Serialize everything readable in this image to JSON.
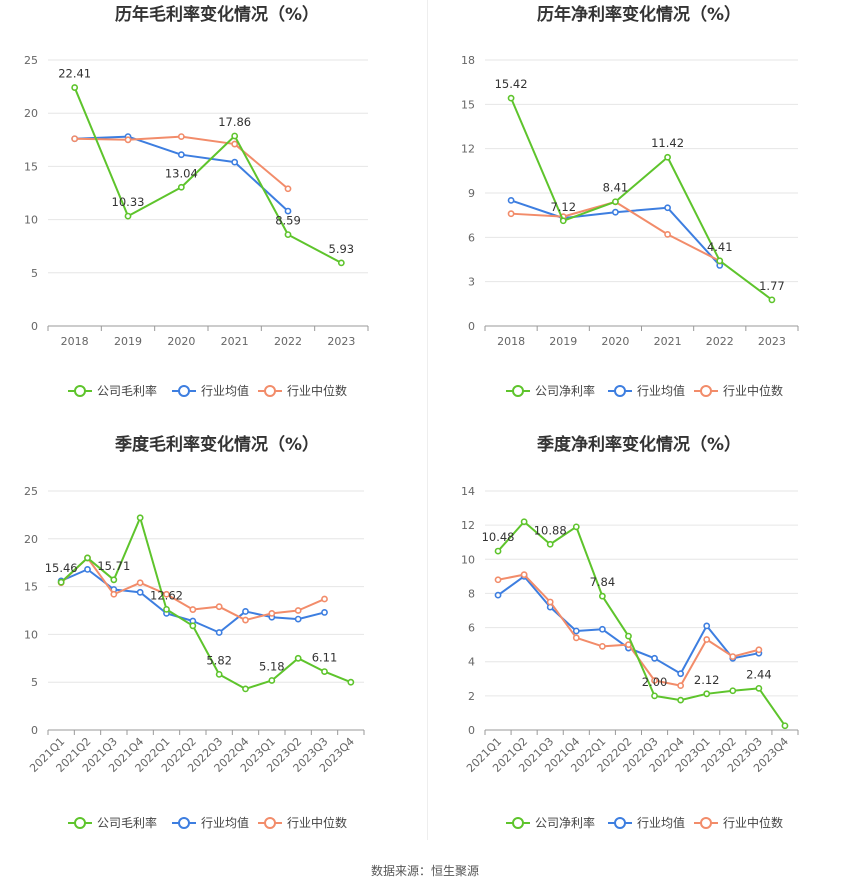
{
  "source": {
    "label": "数据来源：",
    "name": "恒生聚源"
  },
  "colors": {
    "company": "#5ec42c",
    "industry_avg": "#3d7ee0",
    "industry_median": "#f28c6a",
    "grid": "#e6e6e6",
    "axis": "#999999"
  },
  "chart_data": [
    {
      "type": "line",
      "title": "历年毛利率变化情况（%）",
      "categories": [
        "2018",
        "2019",
        "2020",
        "2021",
        "2022",
        "2023"
      ],
      "ylim": [
        0,
        25
      ],
      "yticks": [
        0,
        5,
        10,
        15,
        20,
        25
      ],
      "legend": "bottom-center",
      "series": [
        {
          "name": "公司毛利率",
          "color": "#5ec42c",
          "values": [
            22.41,
            10.33,
            13.04,
            17.86,
            8.59,
            5.93
          ],
          "labels": [
            "22.41",
            "10.33",
            "13.04",
            "17.86",
            "8.59",
            "5.93"
          ]
        },
        {
          "name": "行业均值",
          "color": "#3d7ee0",
          "values": [
            17.6,
            17.8,
            16.1,
            15.4,
            10.8,
            null
          ]
        },
        {
          "name": "行业中位数",
          "color": "#f28c6a",
          "values": [
            17.6,
            17.5,
            17.8,
            17.1,
            12.9,
            null
          ]
        }
      ]
    },
    {
      "type": "line",
      "title": "历年净利率变化情况（%）",
      "categories": [
        "2018",
        "2019",
        "2020",
        "2021",
        "2022",
        "2023"
      ],
      "ylim": [
        0,
        18
      ],
      "yticks": [
        0,
        3,
        6,
        9,
        12,
        15,
        18
      ],
      "legend": "bottom-center",
      "series": [
        {
          "name": "公司净利率",
          "color": "#5ec42c",
          "values": [
            15.42,
            7.12,
            8.41,
            11.42,
            4.41,
            1.77
          ],
          "labels": [
            "15.42",
            "7.12",
            "8.41",
            "11.42",
            "4.41",
            "1.77"
          ]
        },
        {
          "name": "行业均值",
          "color": "#3d7ee0",
          "values": [
            8.5,
            7.3,
            7.7,
            8.0,
            4.1,
            null
          ]
        },
        {
          "name": "行业中位数",
          "color": "#f28c6a",
          "values": [
            7.6,
            7.4,
            8.4,
            6.2,
            4.4,
            null
          ]
        }
      ]
    },
    {
      "type": "line",
      "title": "季度毛利率变化情况（%）",
      "categories": [
        "2021Q1",
        "2021Q2",
        "2021Q3",
        "2021Q4",
        "2022Q1",
        "2022Q2",
        "2022Q3",
        "2022Q4",
        "2023Q1",
        "2023Q2",
        "2023Q3",
        "2023Q4"
      ],
      "ylim": [
        0,
        25
      ],
      "yticks": [
        0,
        5,
        10,
        15,
        20,
        25
      ],
      "legend": "bottom-center",
      "series": [
        {
          "name": "公司毛利率",
          "color": "#5ec42c",
          "values": [
            15.46,
            18.0,
            15.71,
            22.2,
            12.62,
            10.9,
            5.82,
            4.3,
            5.18,
            7.5,
            6.11,
            5.0
          ],
          "labels": [
            "15.46",
            "",
            "15.71",
            "",
            "12.62",
            "",
            "5.82",
            "",
            "5.18",
            "",
            "6.11",
            ""
          ]
        },
        {
          "name": "行业均值",
          "color": "#3d7ee0",
          "values": [
            15.6,
            16.8,
            14.7,
            14.4,
            12.2,
            11.4,
            10.2,
            12.4,
            11.8,
            11.6,
            12.3,
            null
          ]
        },
        {
          "name": "行业中位数",
          "color": "#f28c6a",
          "values": [
            15.4,
            18.0,
            14.2,
            15.4,
            14.2,
            12.6,
            12.9,
            11.5,
            12.2,
            12.5,
            13.7,
            null
          ]
        }
      ]
    },
    {
      "type": "line",
      "title": "季度净利率变化情况（%）",
      "categories": [
        "2021Q1",
        "2021Q2",
        "2021Q3",
        "2021Q4",
        "2022Q1",
        "2022Q2",
        "2022Q3",
        "2022Q4",
        "2023Q1",
        "2023Q2",
        "2023Q3",
        "2023Q4"
      ],
      "ylim": [
        0,
        14
      ],
      "yticks": [
        0,
        2,
        4,
        6,
        8,
        10,
        12,
        14
      ],
      "legend": "bottom-center",
      "series": [
        {
          "name": "公司净利率",
          "color": "#5ec42c",
          "values": [
            10.48,
            12.2,
            10.88,
            11.9,
            7.84,
            5.5,
            2.0,
            1.75,
            2.12,
            2.3,
            2.44,
            0.25
          ],
          "labels": [
            "10.48",
            "",
            "10.88",
            "",
            "7.84",
            "",
            "2.00",
            "",
            "2.12",
            "",
            "2.44",
            ""
          ]
        },
        {
          "name": "行业均值",
          "color": "#3d7ee0",
          "values": [
            7.9,
            9.0,
            7.2,
            5.8,
            5.9,
            4.8,
            4.2,
            3.3,
            6.1,
            4.2,
            4.5,
            null
          ]
        },
        {
          "name": "行业中位数",
          "color": "#f28c6a",
          "values": [
            8.8,
            9.1,
            7.5,
            5.4,
            4.9,
            5.0,
            2.9,
            2.6,
            5.3,
            4.3,
            4.7,
            null
          ]
        }
      ]
    }
  ]
}
